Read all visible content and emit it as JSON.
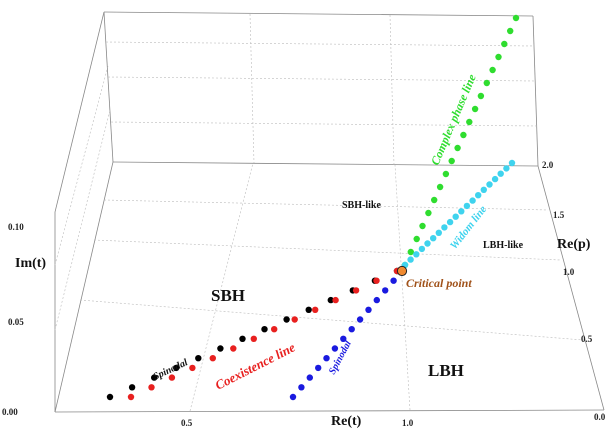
{
  "chart_data": {
    "type": "scatter",
    "title": "",
    "axes": {
      "x": {
        "label": "Re(t)",
        "ticks": [
          "0.5",
          "1.0"
        ]
      },
      "y": {
        "label": "Re(p)",
        "ticks": [
          "0.0",
          "0.5",
          "1.0",
          "1.5",
          "2.0"
        ]
      },
      "z": {
        "label": "Im(t)",
        "ticks": [
          "0.00",
          "0.05",
          "0.10"
        ]
      }
    },
    "grid": true,
    "regions": {
      "sbh": "SBH",
      "lbh": "LBH",
      "sbh_like": "SBH-like",
      "lbh_like": "LBH-like"
    },
    "annotations": {
      "spinodal_black": "Spinodal",
      "coexistence": "Coexistence line",
      "spinodal_blue": "Spinodal",
      "critical_point": "Critical point",
      "widom": "Widom line",
      "complex_phase": "Complex phase line"
    },
    "series": [
      {
        "color": "#000000",
        "x": [
          0.35,
          0.4,
          0.45,
          0.5,
          0.55,
          0.6,
          0.65,
          0.7,
          0.75,
          0.8,
          0.85,
          0.9,
          0.95,
          1.0
        ],
        "y": [
          0.0,
          0.06,
          0.13,
          0.2,
          0.28,
          0.36,
          0.44,
          0.52,
          0.6,
          0.69,
          0.78,
          0.86,
          0.93,
          1.0
        ],
        "z": [
          0,
          0,
          0,
          0,
          0,
          0,
          0,
          0,
          0,
          0,
          0,
          0,
          0,
          0
        ]
      },
      {
        "color": "#e8201f",
        "x": [
          0.35,
          0.4,
          0.45,
          0.5,
          0.55,
          0.6,
          0.65,
          0.7,
          0.75,
          0.8,
          0.85,
          0.9,
          0.95,
          1.0
        ],
        "y": [
          0.0,
          0.06,
          0.13,
          0.2,
          0.28,
          0.36,
          0.44,
          0.52,
          0.6,
          0.69,
          0.78,
          0.86,
          0.93,
          1.0
        ],
        "z": [
          0,
          0,
          0,
          0,
          0,
          0,
          0,
          0,
          0,
          0,
          0,
          0,
          0,
          0
        ]
      },
      {
        "color": "#1a1adf",
        "x": [
          0.35,
          0.4,
          0.45,
          0.5,
          0.55,
          0.6,
          0.65,
          0.7,
          0.75,
          0.8,
          0.85,
          0.9,
          0.95,
          1.0
        ],
        "y": [
          0.0,
          0.06,
          0.13,
          0.2,
          0.28,
          0.36,
          0.44,
          0.52,
          0.6,
          0.69,
          0.78,
          0.86,
          0.93,
          1.0
        ],
        "z": [
          0,
          0,
          0,
          0,
          0,
          0,
          0,
          0,
          0,
          0,
          0,
          0,
          0,
          0
        ]
      },
      {
        "color": "#2fdd2f",
        "x": [
          1.0,
          1.07,
          1.14,
          1.21,
          1.28,
          1.35,
          1.42,
          1.49,
          1.56,
          1.63,
          1.7,
          1.77,
          1.84,
          1.91,
          1.98,
          2.05,
          2.12,
          2.19,
          2.26,
          2.33
        ],
        "y": [
          1.0,
          1.05,
          1.1,
          1.15,
          1.2,
          1.25,
          1.3,
          1.35,
          1.4,
          1.45,
          1.5,
          1.55,
          1.6,
          1.65,
          1.7,
          1.75,
          1.8,
          1.85,
          1.9,
          1.95
        ],
        "z": [
          0,
          0.005,
          0.01,
          0.015,
          0.02,
          0.025,
          0.03,
          0.035,
          0.04,
          0.045,
          0.05,
          0.055,
          0.06,
          0.065,
          0.07,
          0.075,
          0.08,
          0.085,
          0.09,
          0.095
        ]
      },
      {
        "color": "#3fd3ee",
        "x": [
          1.0,
          1.05,
          1.1,
          1.15,
          1.2,
          1.25,
          1.3,
          1.35,
          1.4,
          1.45,
          1.5,
          1.55,
          1.6,
          1.65,
          1.7,
          1.75,
          1.8,
          1.85,
          1.9,
          1.95
        ],
        "y": [
          1.0,
          1.05,
          1.1,
          1.15,
          1.2,
          1.25,
          1.3,
          1.35,
          1.4,
          1.45,
          1.5,
          1.55,
          1.6,
          1.65,
          1.7,
          1.75,
          1.8,
          1.85,
          1.9,
          1.95
        ],
        "z": [
          0,
          0,
          0,
          0,
          0,
          0,
          0,
          0,
          0,
          0,
          0,
          0,
          0,
          0,
          0,
          0,
          0,
          0,
          0,
          0
        ]
      }
    ],
    "critical_point": {
      "x": 1.0,
      "y": 1.0,
      "z": 0,
      "color": "#f08a30"
    },
    "colors": {
      "coexistence": "#e8201f",
      "spinodal_black": "#111111",
      "spinodal_blue": "#1a1adf",
      "widom": "#3fd3ee",
      "complex": "#2fdd2f",
      "critical": "#a0521a"
    }
  }
}
